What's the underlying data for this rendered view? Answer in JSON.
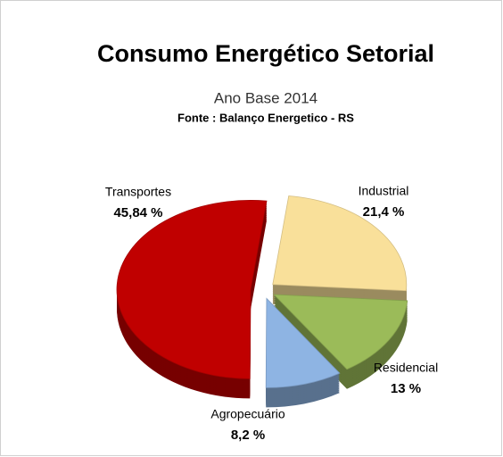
{
  "chart_data": {
    "type": "pie",
    "title": "Consumo Energético Setorial",
    "subtitle": "Ano Base 2014",
    "source": "Fonte : Balanço Energetico - RS",
    "categories": [
      "Industrial",
      "Residencial",
      "Agropecuário",
      "Transportes"
    ],
    "values": [
      21.4,
      13,
      8.2,
      45.84
    ],
    "value_labels": [
      "21,4 %",
      "13 %",
      "8,2 %",
      "45,84 %"
    ],
    "colors": [
      "#f9e09a",
      "#9bbb59",
      "#8eb4e3",
      "#c00000"
    ]
  }
}
